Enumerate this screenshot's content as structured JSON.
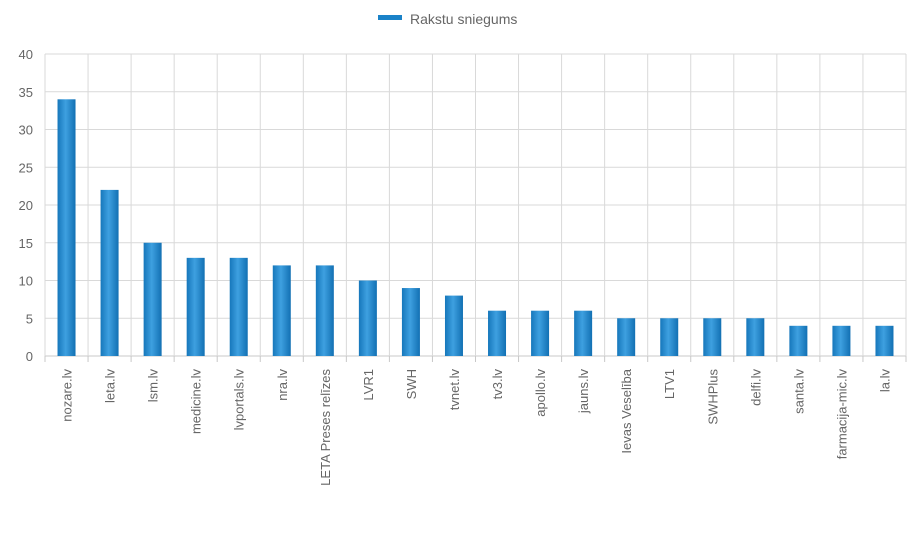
{
  "chart_data": {
    "type": "bar",
    "categories": [
      "nozare.lv",
      "leta.lv",
      "lsm.lv",
      "medicine.lv",
      "lvportals.lv",
      "nra.lv",
      "LETA Preses relīzes",
      "LVR1",
      "SWH",
      "tvnet.lv",
      "tv3.lv",
      "apollo.lv",
      "jauns.lv",
      "Ievas Veselība",
      "LTV1",
      "SWHPlus",
      "delfi.lv",
      "santa.lv",
      "farmacija-mic.lv",
      "la.lv"
    ],
    "series": [
      {
        "name": "Rakstu sniegums",
        "values": [
          34,
          22,
          15,
          13,
          13,
          12,
          12,
          10,
          9,
          8,
          6,
          6,
          6,
          5,
          5,
          5,
          5,
          4,
          4,
          4
        ]
      }
    ],
    "ylim": [
      0,
      40
    ],
    "yticks": [
      0,
      5,
      10,
      15,
      20,
      25,
      30,
      35,
      40
    ],
    "grid": true,
    "legend": "top-center",
    "colors": {
      "bar": "#1a82c8",
      "bar_light": "#3ea0e0",
      "bar_dark": "#0f5f99",
      "grid": "#d9d9d9",
      "axis": "#c8c8c8",
      "text": "#666666"
    }
  }
}
